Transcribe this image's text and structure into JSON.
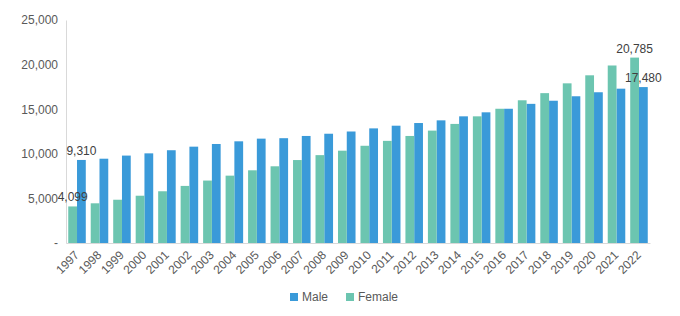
{
  "chart_data": {
    "type": "bar",
    "categories": [
      "1997",
      "1998",
      "1999",
      "2000",
      "2001",
      "2002",
      "2003",
      "2004",
      "2005",
      "2006",
      "2007",
      "2008",
      "2009",
      "2010",
      "2011",
      "2012",
      "2013",
      "2014",
      "2015",
      "2016",
      "2017",
      "2018",
      "2019",
      "2020",
      "2021",
      "2022"
    ],
    "series": [
      {
        "name": "Male",
        "color": "#3a9ad9",
        "values": [
          9310,
          9450,
          9800,
          10050,
          10400,
          10800,
          11100,
          11400,
          11700,
          11750,
          12000,
          12250,
          12500,
          12850,
          13150,
          13450,
          13750,
          14200,
          14650,
          15050,
          15600,
          15950,
          16450,
          16900,
          17300,
          17480
        ],
        "value_labels": [
          "9,310",
          null,
          null,
          null,
          null,
          null,
          null,
          null,
          null,
          null,
          null,
          null,
          null,
          null,
          null,
          null,
          null,
          null,
          null,
          null,
          null,
          null,
          null,
          null,
          null,
          "17,480"
        ]
      },
      {
        "name": "Female",
        "color": "#6cc5b0",
        "values": [
          4099,
          4450,
          4850,
          5300,
          5800,
          6400,
          7000,
          7550,
          8150,
          8600,
          9300,
          9850,
          10350,
          10900,
          11450,
          12000,
          12600,
          13350,
          14200,
          15050,
          16000,
          16800,
          17900,
          18800,
          19900,
          20785
        ],
        "value_labels": [
          "4,099",
          null,
          null,
          null,
          null,
          null,
          null,
          null,
          null,
          null,
          null,
          null,
          null,
          null,
          null,
          null,
          null,
          null,
          null,
          null,
          null,
          null,
          null,
          null,
          null,
          "20,785"
        ]
      }
    ],
    "ylim": [
      0,
      25000
    ],
    "yticks": [
      {
        "value": 0,
        "label": "-"
      },
      {
        "value": 5000,
        "label": "5,000"
      },
      {
        "value": 10000,
        "label": "10,000"
      },
      {
        "value": 15000,
        "label": "15,000"
      },
      {
        "value": 20000,
        "label": "20,000"
      },
      {
        "value": 25000,
        "label": "25,000"
      }
    ],
    "grid": false,
    "legend": "bottom",
    "data_labels": true
  }
}
